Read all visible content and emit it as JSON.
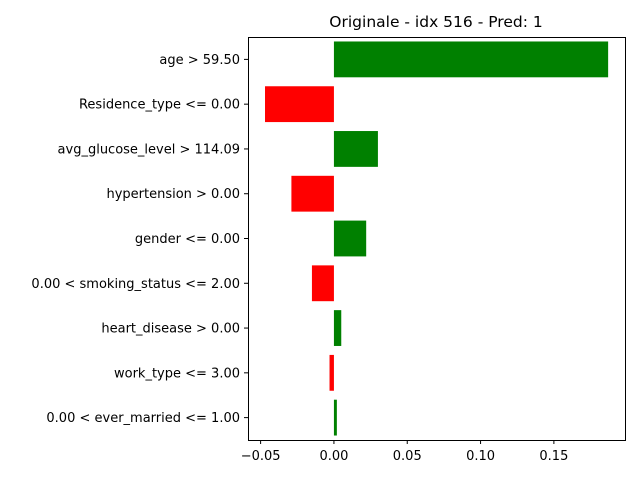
{
  "chart_data": {
    "type": "bar",
    "orientation": "horizontal",
    "title": "Originale - idx 516 - Pred: 1",
    "xlabel": "",
    "ylabel": "",
    "xlim": [
      -0.0586,
      0.1985
    ],
    "xticks": [
      -0.05,
      0.0,
      0.05,
      0.1,
      0.15
    ],
    "xtick_labels": [
      "−0.05",
      "0.00",
      "0.05",
      "0.10",
      "0.15"
    ],
    "grid": false,
    "legend": "none",
    "positive_color": "#008000",
    "negative_color": "#ff0000",
    "categories": [
      "age > 59.50",
      "Residence_type <= 0.00",
      "avg_glucose_level > 114.09",
      "hypertension > 0.00",
      "gender <= 0.00",
      "0.00 < smoking_status <= 2.00",
      "heart_disease > 0.00",
      "work_type <= 3.00",
      "0.00 < ever_married <= 1.00"
    ],
    "values": [
      0.187,
      -0.047,
      0.03,
      -0.029,
      0.022,
      -0.015,
      0.005,
      -0.003,
      0.002
    ]
  }
}
